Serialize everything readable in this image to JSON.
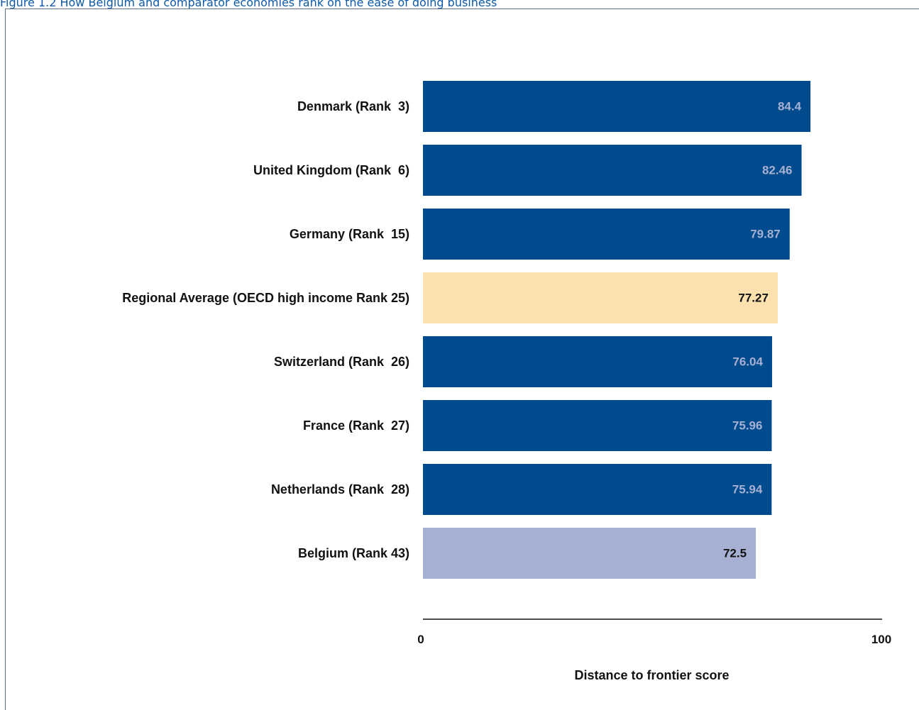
{
  "figure": {
    "title": "Figure 1.2 How Belgium and comparator economies rank on the ease of doing business"
  },
  "colors": {
    "default_bar": "#004b8d",
    "average_bar": "#fce1ae",
    "highlight_bar": "#a6b0d2",
    "default_label": "#a6b0d2",
    "dark_label": "#111111",
    "axis": "#111111"
  },
  "chart_data": {
    "type": "bar",
    "orientation": "horizontal",
    "categories": [
      "Denmark (Rank  3)",
      "United Kingdom (Rank  6)",
      "Germany (Rank  15)",
      "Regional Average (OECD high income Rank 25)",
      "Switzerland (Rank  26)",
      "France (Rank  27)",
      "Netherlands (Rank  28)",
      "Belgium (Rank 43)"
    ],
    "values": [
      84.4,
      82.46,
      79.87,
      77.27,
      76.04,
      75.96,
      75.94,
      72.5
    ],
    "value_labels": [
      "84.4",
      "82.46",
      "79.87",
      "77.27",
      "76.04",
      "75.96",
      "75.94",
      "72.5"
    ],
    "bar_styles": [
      "default",
      "default",
      "default",
      "average",
      "default",
      "default",
      "default",
      "highlight"
    ],
    "xlim": [
      0,
      100
    ],
    "x_ticks": [
      "0",
      "100"
    ],
    "xlabel": "Distance to frontier score",
    "ylabel": "",
    "grid": false,
    "legend": "none"
  }
}
